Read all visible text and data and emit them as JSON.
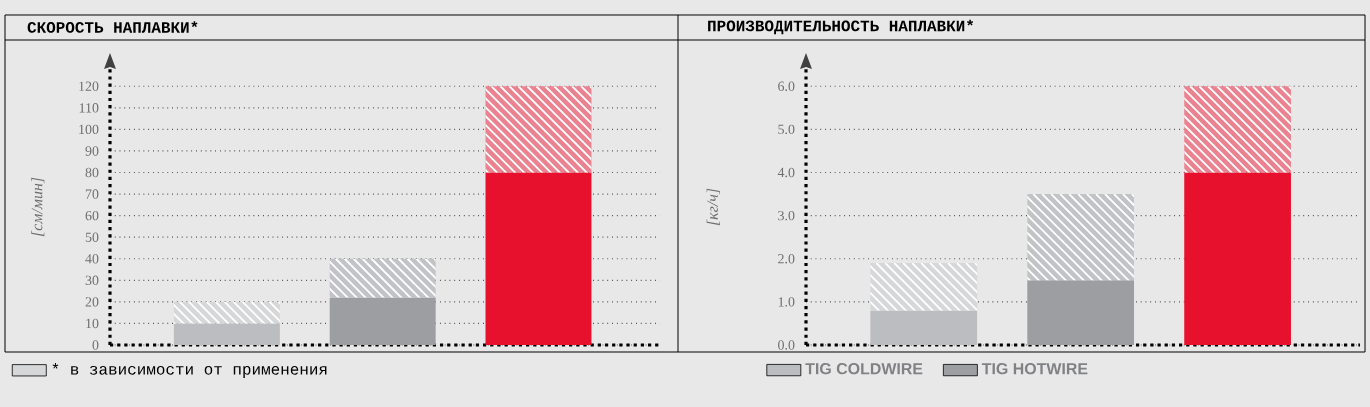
{
  "chart_data": [
    {
      "type": "bar",
      "title": "СКОРОСТЬ НАПЛАВКИ*",
      "ylabel": "[см/мин]",
      "stacked": true,
      "categories": [
        null,
        null,
        null
      ],
      "series": [
        {
          "color": "#bcbdc0",
          "values": [
            10,
            null,
            null
          ]
        },
        {
          "color": "#9d9ea2",
          "values": [
            null,
            22,
            null
          ]
        },
        {
          "color": "#e8112d",
          "values": [
            null,
            null,
            80
          ]
        },
        {
          "name": "* в зависимости от применения",
          "colors": [
            "#d6d7d9",
            "#c2c3c6",
            "#ea8290"
          ],
          "values": [
            10,
            18,
            40
          ]
        }
      ],
      "ylim": [
        0,
        128
      ],
      "yticks": [
        0,
        10,
        20,
        30,
        40,
        50,
        60,
        70,
        80,
        90,
        100,
        110,
        120
      ],
      "grid": "y",
      "legend": "bottom left"
    },
    {
      "type": "bar",
      "title": "ПРОИЗВОДИТЕЛЬНОСТЬ НАПЛАВКИ*",
      "ylabel": "[кг/ч]",
      "stacked": true,
      "categories": [
        null,
        null,
        null
      ],
      "series": [
        {
          "name": "TIG COLDWIRE",
          "color": "#bcbdc0",
          "values": [
            0.8,
            null,
            null
          ]
        },
        {
          "name": "TIG HOTWIRE",
          "color": "#9d9ea2",
          "values": [
            null,
            1.5,
            null
          ]
        },
        {
          "color": "#e8112d",
          "values": [
            null,
            null,
            4.0
          ]
        },
        {
          "colors": [
            "#d6d7d9",
            "#c2c3c6",
            "#ea8290"
          ],
          "values": [
            1.1,
            2.0,
            2.0
          ]
        }
      ],
      "ylim": [
        0,
        6.4
      ],
      "yticks": [
        {
          "value": 0,
          "label": "0.0"
        },
        {
          "value": 1,
          "label": "1.0"
        },
        {
          "value": 2,
          "label": "2.0"
        },
        {
          "value": 3,
          "label": "3.0"
        },
        {
          "value": 4,
          "label": "4.0"
        },
        {
          "value": 5,
          "label": "5.0"
        },
        {
          "value": 6,
          "label": "6.0"
        }
      ],
      "grid": "y",
      "legend": "bottom"
    }
  ]
}
